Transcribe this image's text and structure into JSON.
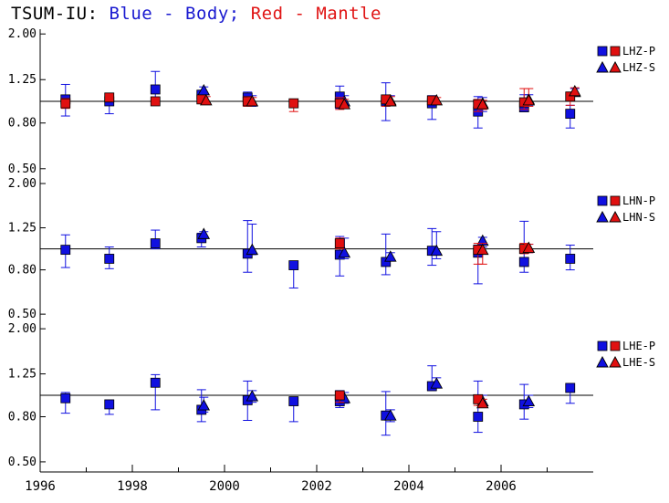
{
  "title": {
    "station": "TSUM-IU:",
    "blue_text": "Blue - Body;",
    "red_text": "Red - Mantle"
  },
  "colors": {
    "body": "#1010e0",
    "mantle": "#e01010",
    "axis": "#000000"
  },
  "chart_data": [
    {
      "type": "scatter",
      "panel": "LHZ",
      "ylim": [
        0.45,
        2.1
      ],
      "y_scale": "log",
      "yticks": [
        "2.00",
        "1.25",
        "0.80",
        "0.50"
      ],
      "reference_line": 1.0,
      "legend": [
        "LHZ-P",
        "LHZ-S"
      ],
      "series": [
        {
          "name": "LHZ-P",
          "color": "blue",
          "marker": "square",
          "points": [
            {
              "x": 1996.55,
              "y": 1.02,
              "lo": 0.86,
              "hi": 1.19
            },
            {
              "x": 1997.5,
              "y": 1.0,
              "lo": 0.88,
              "hi": 1.06
            },
            {
              "x": 1998.5,
              "y": 1.13,
              "lo": 1.02,
              "hi": 1.36
            },
            {
              "x": 1999.5,
              "y": 1.07,
              "lo": 1.01,
              "hi": 1.12
            },
            {
              "x": 2000.5,
              "y": 1.04,
              "lo": 0.96,
              "hi": 1.1
            },
            {
              "x": 2002.5,
              "y": 1.05,
              "lo": 0.93,
              "hi": 1.17
            },
            {
              "x": 2003.5,
              "y": 1.0,
              "lo": 0.82,
              "hi": 1.21
            },
            {
              "x": 2004.5,
              "y": 0.98,
              "lo": 0.83,
              "hi": 1.06
            },
            {
              "x": 2005.5,
              "y": 0.9,
              "lo": 0.76,
              "hi": 1.05
            },
            {
              "x": 2006.5,
              "y": 0.94,
              "lo": 0.91,
              "hi": 1.07
            },
            {
              "x": 2007.5,
              "y": 0.88,
              "lo": 0.76,
              "hi": 0.96
            }
          ]
        },
        {
          "name": "LHZ-S",
          "color": "blue",
          "marker": "triangle",
          "points": [
            {
              "x": 1999.55,
              "y": 1.12,
              "lo": 1.04,
              "hi": 1.16
            },
            {
              "x": 2000.6,
              "y": 1.0,
              "lo": 0.95,
              "hi": 1.06
            },
            {
              "x": 2002.6,
              "y": 1.0,
              "lo": 0.95,
              "hi": 1.06
            },
            {
              "x": 2003.6,
              "y": 1.01,
              "lo": 0.96,
              "hi": 1.06
            },
            {
              "x": 2005.6,
              "y": 0.98,
              "lo": 0.9,
              "hi": 1.04
            },
            {
              "x": 2006.6,
              "y": 1.02,
              "lo": 0.96,
              "hi": 1.07
            },
            {
              "x": 2007.6,
              "y": 1.1,
              "lo": 1.06,
              "hi": 1.14
            }
          ]
        },
        {
          "name": "LHZ-P (mantle)",
          "color": "red",
          "marker": "square",
          "points": [
            {
              "x": 1996.55,
              "y": 0.98,
              "lo": 0.93,
              "hi": 1.03
            },
            {
              "x": 1997.5,
              "y": 1.04,
              "lo": 1.0,
              "hi": 1.07
            },
            {
              "x": 1998.5,
              "y": 1.0,
              "lo": 0.97,
              "hi": 1.03
            },
            {
              "x": 1999.5,
              "y": 1.02,
              "lo": 0.98,
              "hi": 1.06
            },
            {
              "x": 2000.5,
              "y": 1.0,
              "lo": 0.95,
              "hi": 1.05
            },
            {
              "x": 2001.5,
              "y": 0.98,
              "lo": 0.9,
              "hi": 1.02
            },
            {
              "x": 2002.5,
              "y": 0.98,
              "lo": 0.92,
              "hi": 1.04
            },
            {
              "x": 2003.5,
              "y": 1.02,
              "lo": 0.95,
              "hi": 1.06
            },
            {
              "x": 2004.5,
              "y": 1.01,
              "lo": 0.97,
              "hi": 1.04
            },
            {
              "x": 2005.5,
              "y": 0.97,
              "lo": 0.9,
              "hi": 1.02
            },
            {
              "x": 2006.5,
              "y": 0.99,
              "lo": 0.92,
              "hi": 1.14
            },
            {
              "x": 2007.5,
              "y": 1.05,
              "lo": 0.96,
              "hi": 1.1
            }
          ]
        },
        {
          "name": "LHZ-S (mantle)",
          "color": "red",
          "marker": "triangle",
          "points": [
            {
              "x": 1999.6,
              "y": 1.01,
              "lo": 0.97,
              "hi": 1.05
            },
            {
              "x": 2000.6,
              "y": 1.0,
              "lo": 0.96,
              "hi": 1.04
            },
            {
              "x": 2002.6,
              "y": 0.97,
              "lo": 0.93,
              "hi": 1.02
            },
            {
              "x": 2003.6,
              "y": 1.0,
              "lo": 0.96,
              "hi": 1.05
            },
            {
              "x": 2004.6,
              "y": 1.01,
              "lo": 0.98,
              "hi": 1.04
            },
            {
              "x": 2005.6,
              "y": 0.97,
              "lo": 0.92,
              "hi": 1.01
            },
            {
              "x": 2006.6,
              "y": 1.01,
              "lo": 0.95,
              "hi": 1.14
            },
            {
              "x": 2007.6,
              "y": 1.11,
              "lo": 1.07,
              "hi": 1.15
            }
          ]
        }
      ]
    },
    {
      "type": "scatter",
      "panel": "LHN",
      "ylim": [
        0.45,
        2.1
      ],
      "y_scale": "log",
      "yticks": [
        "2.00",
        "1.25",
        "0.80",
        "0.50"
      ],
      "reference_line": 1.0,
      "legend": [
        "LHN-P",
        "LHN-S"
      ],
      "series": [
        {
          "name": "LHN-P",
          "color": "blue",
          "marker": "square",
          "points": [
            {
              "x": 1996.55,
              "y": 0.99,
              "lo": 0.82,
              "hi": 1.16
            },
            {
              "x": 1997.5,
              "y": 0.9,
              "lo": 0.81,
              "hi": 1.02
            },
            {
              "x": 1998.5,
              "y": 1.06,
              "lo": 1.0,
              "hi": 1.22
            },
            {
              "x": 1999.5,
              "y": 1.12,
              "lo": 1.02,
              "hi": 1.18
            },
            {
              "x": 2000.5,
              "y": 0.95,
              "lo": 0.78,
              "hi": 1.35
            },
            {
              "x": 2001.5,
              "y": 0.84,
              "lo": 0.66,
              "hi": 0.86
            },
            {
              "x": 2002.5,
              "y": 0.94,
              "lo": 0.75,
              "hi": 1.14
            },
            {
              "x": 2003.5,
              "y": 0.87,
              "lo": 0.76,
              "hi": 1.17
            },
            {
              "x": 2004.5,
              "y": 0.98,
              "lo": 0.84,
              "hi": 1.24
            },
            {
              "x": 2005.5,
              "y": 0.96,
              "lo": 0.69,
              "hi": 1.04
            },
            {
              "x": 2006.5,
              "y": 0.87,
              "lo": 0.78,
              "hi": 1.34
            },
            {
              "x": 2007.5,
              "y": 0.9,
              "lo": 0.8,
              "hi": 1.04
            }
          ]
        },
        {
          "name": "LHN-S",
          "color": "blue",
          "marker": "triangle",
          "points": [
            {
              "x": 1999.55,
              "y": 1.17,
              "lo": 1.12,
              "hi": 1.2
            },
            {
              "x": 2000.6,
              "y": 0.99,
              "lo": 0.94,
              "hi": 1.3
            },
            {
              "x": 2002.6,
              "y": 0.96,
              "lo": 0.9,
              "hi": 1.12
            },
            {
              "x": 2003.6,
              "y": 0.92,
              "lo": 0.88,
              "hi": 0.96
            },
            {
              "x": 2004.6,
              "y": 0.98,
              "lo": 0.9,
              "hi": 1.2
            },
            {
              "x": 2005.6,
              "y": 1.09,
              "lo": 1.02,
              "hi": 1.13
            },
            {
              "x": 2006.6,
              "y": 1.01,
              "lo": 0.96,
              "hi": 1.05
            }
          ]
        },
        {
          "name": "LHN-P (mantle)",
          "color": "red",
          "marker": "square",
          "points": [
            {
              "x": 2002.5,
              "y": 1.06,
              "lo": 1.0,
              "hi": 1.12
            },
            {
              "x": 2005.5,
              "y": 0.99,
              "lo": 0.85,
              "hi": 1.06
            },
            {
              "x": 2006.5,
              "y": 1.0,
              "lo": 0.95,
              "hi": 1.06
            }
          ]
        },
        {
          "name": "LHN-S (mantle)",
          "color": "red",
          "marker": "triangle",
          "points": [
            {
              "x": 2005.6,
              "y": 0.99,
              "lo": 0.85,
              "hi": 1.06
            },
            {
              "x": 2006.6,
              "y": 1.01,
              "lo": 0.96,
              "hi": 1.05
            }
          ]
        }
      ]
    },
    {
      "type": "scatter",
      "panel": "LHE",
      "ylim": [
        0.45,
        2.1
      ],
      "y_scale": "log",
      "yticks": [
        "2.00",
        "1.25",
        "0.80",
        "0.50"
      ],
      "reference_line": 1.0,
      "legend": [
        "LHE-P",
        "LHE-S"
      ],
      "series": [
        {
          "name": "LHE-P",
          "color": "blue",
          "marker": "square",
          "points": [
            {
              "x": 1996.55,
              "y": 0.97,
              "lo": 0.83,
              "hi": 1.03
            },
            {
              "x": 1997.5,
              "y": 0.91,
              "lo": 0.82,
              "hi": 0.95
            },
            {
              "x": 1998.5,
              "y": 1.14,
              "lo": 0.86,
              "hi": 1.24
            },
            {
              "x": 1999.5,
              "y": 0.86,
              "lo": 0.76,
              "hi": 1.06
            },
            {
              "x": 2000.5,
              "y": 0.95,
              "lo": 0.77,
              "hi": 1.16
            },
            {
              "x": 2001.5,
              "y": 0.94,
              "lo": 0.76,
              "hi": 0.96
            },
            {
              "x": 2002.5,
              "y": 0.94,
              "lo": 0.88,
              "hi": 1.05
            },
            {
              "x": 2003.5,
              "y": 0.81,
              "lo": 0.66,
              "hi": 1.04
            },
            {
              "x": 2004.5,
              "y": 1.1,
              "lo": 1.05,
              "hi": 1.36
            },
            {
              "x": 2005.5,
              "y": 0.8,
              "lo": 0.68,
              "hi": 1.16
            },
            {
              "x": 2006.5,
              "y": 0.91,
              "lo": 0.78,
              "hi": 1.12
            },
            {
              "x": 2007.5,
              "y": 1.08,
              "lo": 0.92,
              "hi": 1.1
            }
          ]
        },
        {
          "name": "LHE-S",
          "color": "blue",
          "marker": "triangle",
          "points": [
            {
              "x": 1999.55,
              "y": 0.9,
              "lo": 0.84,
              "hi": 0.98
            },
            {
              "x": 2000.6,
              "y": 0.99,
              "lo": 0.93,
              "hi": 1.05
            },
            {
              "x": 2002.6,
              "y": 0.97,
              "lo": 0.92,
              "hi": 1.03
            },
            {
              "x": 2003.6,
              "y": 0.81,
              "lo": 0.76,
              "hi": 0.86
            },
            {
              "x": 2004.6,
              "y": 1.13,
              "lo": 1.08,
              "hi": 1.2
            },
            {
              "x": 2005.6,
              "y": 0.94,
              "lo": 0.88,
              "hi": 1.0
            },
            {
              "x": 2006.6,
              "y": 0.94,
              "lo": 0.88,
              "hi": 1.0
            }
          ]
        },
        {
          "name": "LHE-P (mantle)",
          "color": "red",
          "marker": "square",
          "points": [
            {
              "x": 2002.5,
              "y": 1.0,
              "lo": 0.93,
              "hi": 1.04
            },
            {
              "x": 2005.5,
              "y": 0.96,
              "lo": 0.9,
              "hi": 1.0
            }
          ]
        },
        {
          "name": "LHE-S (mantle)",
          "color": "red",
          "marker": "triangle",
          "points": [
            {
              "x": 2005.6,
              "y": 0.92,
              "lo": 0.88,
              "hi": 0.96
            }
          ]
        }
      ]
    }
  ],
  "x_axis": {
    "xlim": [
      1996,
      2008
    ],
    "tick_labels": [
      "1996",
      "1998",
      "2000",
      "2002",
      "2004",
      "2006"
    ],
    "tick_values": [
      1996,
      1998,
      2000,
      2002,
      2004,
      2006
    ],
    "minor_ticks": [
      1997,
      1999,
      2001,
      2003,
      2005,
      2007
    ]
  }
}
